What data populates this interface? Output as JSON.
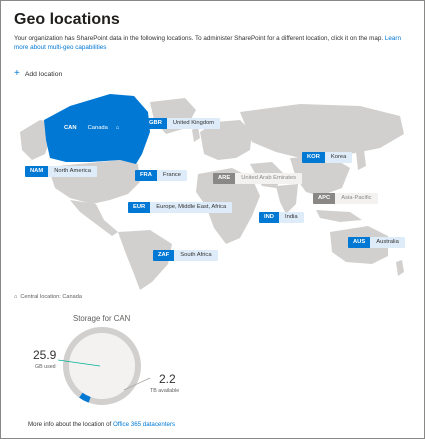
{
  "page": {
    "title": "Geo locations",
    "description": "Your organization has SharePoint data in the following locations. To administer SharePoint for a different location, click it on the map.",
    "learn_more_link": "Learn more about multi-geo capabilities",
    "add_location_label": "Add location"
  },
  "map": {
    "colors": {
      "land": "#d2d0ce",
      "selected": "#0078d4",
      "selected_label": "#deecf9",
      "available_code": "#8a8886"
    },
    "locations": [
      {
        "code": "CAN",
        "name": "Canada",
        "state": "current"
      },
      {
        "code": "GBR",
        "name": "United Kingdom",
        "state": "selected"
      },
      {
        "code": "KOR",
        "name": "Korea",
        "state": "selected"
      },
      {
        "code": "NAM",
        "name": "North America",
        "state": "selected"
      },
      {
        "code": "FRA",
        "name": "France",
        "state": "selected"
      },
      {
        "code": "ARE",
        "name": "United Arab Emirates",
        "state": "available"
      },
      {
        "code": "APC",
        "name": "Asia-Pacific",
        "state": "available"
      },
      {
        "code": "EUR",
        "name": "Europe, Middle East, Africa",
        "state": "selected"
      },
      {
        "code": "IND",
        "name": "India",
        "state": "selected"
      },
      {
        "code": "AUS",
        "name": "Australia",
        "state": "selected"
      },
      {
        "code": "ZAF",
        "name": "South Africa",
        "state": "selected"
      }
    ]
  },
  "central_location": "Central location: Canada",
  "storage": {
    "title": "Storage for CAN",
    "used_value": "25.9",
    "used_unit": "GB used",
    "available_value": "2.2",
    "available_unit": "TB available",
    "used_fraction": 0.011
  },
  "footer": {
    "text": "More info about the location of",
    "link": "Office 365 datacenters"
  }
}
